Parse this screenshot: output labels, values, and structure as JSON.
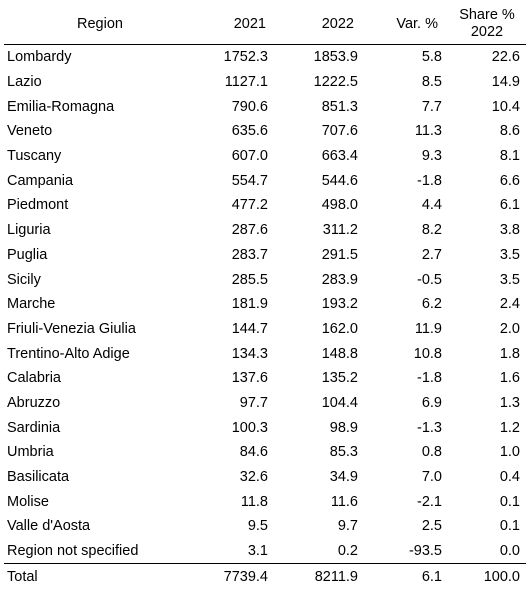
{
  "table": {
    "headers": {
      "region": "Region",
      "y2021": "2021",
      "y2022": "2022",
      "var": "Var. %",
      "share_line1": "Share %",
      "share_line2": "2022"
    },
    "rows": [
      {
        "region": "Lombardy",
        "y2021": "1752.3",
        "y2022": "1853.9",
        "var": "5.8",
        "share": "22.6"
      },
      {
        "region": "Lazio",
        "y2021": "1127.1",
        "y2022": "1222.5",
        "var": "8.5",
        "share": "14.9"
      },
      {
        "region": "Emilia-Romagna",
        "y2021": "790.6",
        "y2022": "851.3",
        "var": "7.7",
        "share": "10.4"
      },
      {
        "region": "Veneto",
        "y2021": "635.6",
        "y2022": "707.6",
        "var": "11.3",
        "share": "8.6"
      },
      {
        "region": "Tuscany",
        "y2021": "607.0",
        "y2022": "663.4",
        "var": "9.3",
        "share": "8.1"
      },
      {
        "region": "Campania",
        "y2021": "554.7",
        "y2022": "544.6",
        "var": "-1.8",
        "share": "6.6"
      },
      {
        "region": "Piedmont",
        "y2021": "477.2",
        "y2022": "498.0",
        "var": "4.4",
        "share": "6.1"
      },
      {
        "region": "Liguria",
        "y2021": "287.6",
        "y2022": "311.2",
        "var": "8.2",
        "share": "3.8"
      },
      {
        "region": "Puglia",
        "y2021": "283.7",
        "y2022": "291.5",
        "var": "2.7",
        "share": "3.5"
      },
      {
        "region": "Sicily",
        "y2021": "285.5",
        "y2022": "283.9",
        "var": "-0.5",
        "share": "3.5"
      },
      {
        "region": "Marche",
        "y2021": "181.9",
        "y2022": "193.2",
        "var": "6.2",
        "share": "2.4"
      },
      {
        "region": "Friuli-Venezia Giulia",
        "y2021": "144.7",
        "y2022": "162.0",
        "var": "11.9",
        "share": "2.0"
      },
      {
        "region": "Trentino-Alto Adige",
        "y2021": "134.3",
        "y2022": "148.8",
        "var": "10.8",
        "share": "1.8"
      },
      {
        "region": "Calabria",
        "y2021": "137.6",
        "y2022": "135.2",
        "var": "-1.8",
        "share": "1.6"
      },
      {
        "region": "Abruzzo",
        "y2021": "97.7",
        "y2022": "104.4",
        "var": "6.9",
        "share": "1.3"
      },
      {
        "region": "Sardinia",
        "y2021": "100.3",
        "y2022": "98.9",
        "var": "-1.3",
        "share": "1.2"
      },
      {
        "region": "Umbria",
        "y2021": "84.6",
        "y2022": "85.3",
        "var": "0.8",
        "share": "1.0"
      },
      {
        "region": "Basilicata",
        "y2021": "32.6",
        "y2022": "34.9",
        "var": "7.0",
        "share": "0.4"
      },
      {
        "region": "Molise",
        "y2021": "11.8",
        "y2022": "11.6",
        "var": "-2.1",
        "share": "0.1"
      },
      {
        "region": "Valle d'Aosta",
        "y2021": "9.5",
        "y2022": "9.7",
        "var": "2.5",
        "share": "0.1"
      },
      {
        "region": "Region not specified",
        "y2021": "3.1",
        "y2022": "0.2",
        "var": "-93.5",
        "share": "0.0"
      }
    ],
    "total": {
      "region": "Total",
      "y2021": "7739.4",
      "y2022": "8211.9",
      "var": "6.1",
      "share": "100.0"
    }
  }
}
